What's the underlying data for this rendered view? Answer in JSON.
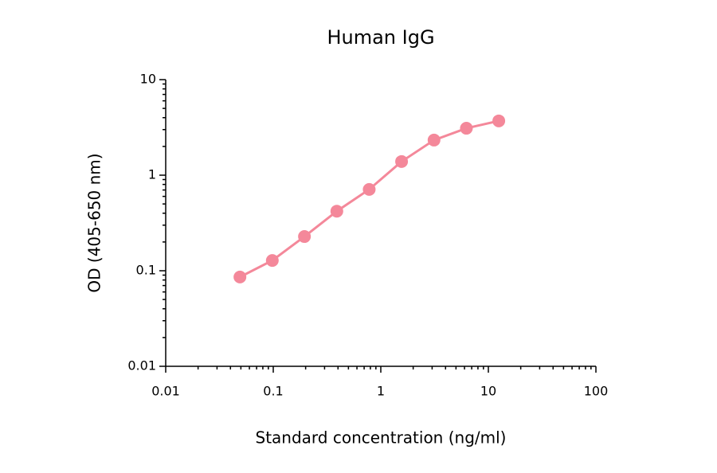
{
  "chart_data": {
    "type": "line",
    "title": "Human IgG",
    "x_label": "Standard concentration (ng/ml)",
    "y_label": "OD (405-650 nm)",
    "x": [
      0.049,
      0.098,
      0.195,
      0.39,
      0.78,
      1.56,
      3.125,
      6.25,
      12.5
    ],
    "series": [
      {
        "name": "Human IgG",
        "color": "#f4889a",
        "values": [
          0.086,
          0.128,
          0.228,
          0.42,
          0.71,
          1.39,
          2.33,
          3.1,
          3.7
        ]
      }
    ],
    "xlim": [
      0.01,
      100
    ],
    "ylim": [
      0.01,
      10
    ],
    "xticks": [
      0.01,
      0.1,
      1,
      10,
      100
    ],
    "yticks": [
      0.01,
      0.1,
      1,
      10
    ],
    "xscale": "log",
    "yscale": "log",
    "minor_ticks": true,
    "grid": false
  }
}
